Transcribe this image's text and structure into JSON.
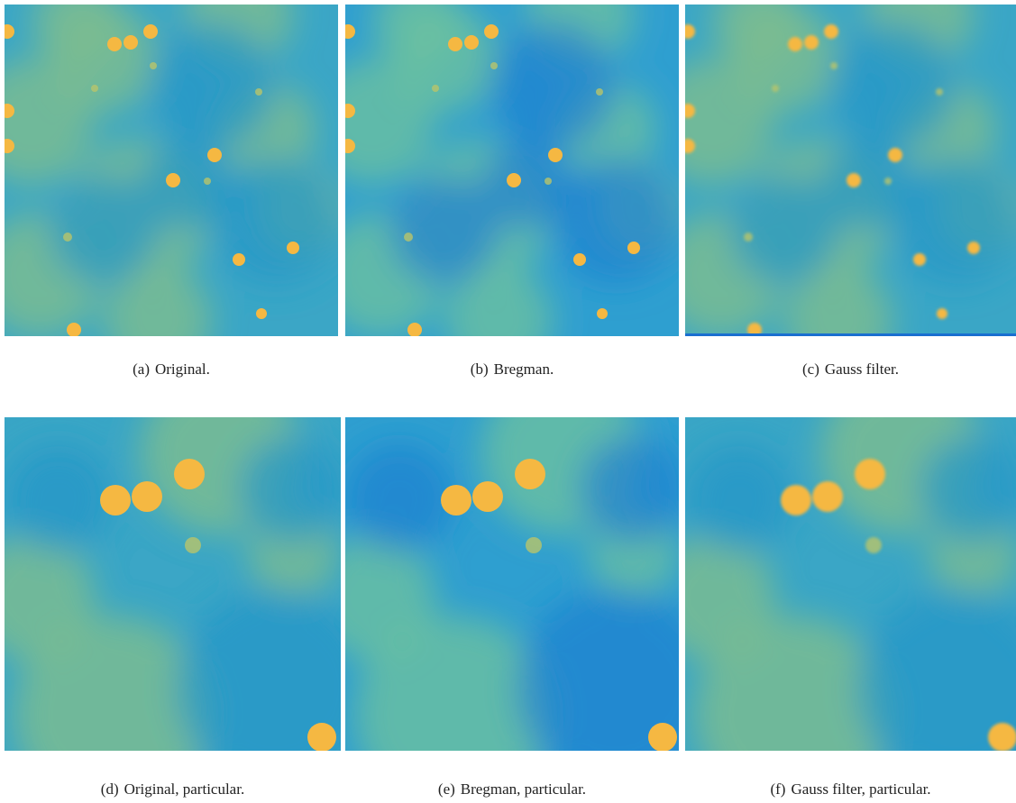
{
  "figure": {
    "panels": [
      {
        "label": "(a)",
        "caption": "Original."
      },
      {
        "label": "(b)",
        "caption": "Bregman."
      },
      {
        "label": "(c)",
        "caption": "Gauss filter."
      },
      {
        "label": "(d)",
        "caption": "Original, particular."
      },
      {
        "label": "(e)",
        "caption": "Bregman, particular."
      },
      {
        "label": "(f)",
        "caption": "Gauss filter, particular."
      }
    ]
  }
}
